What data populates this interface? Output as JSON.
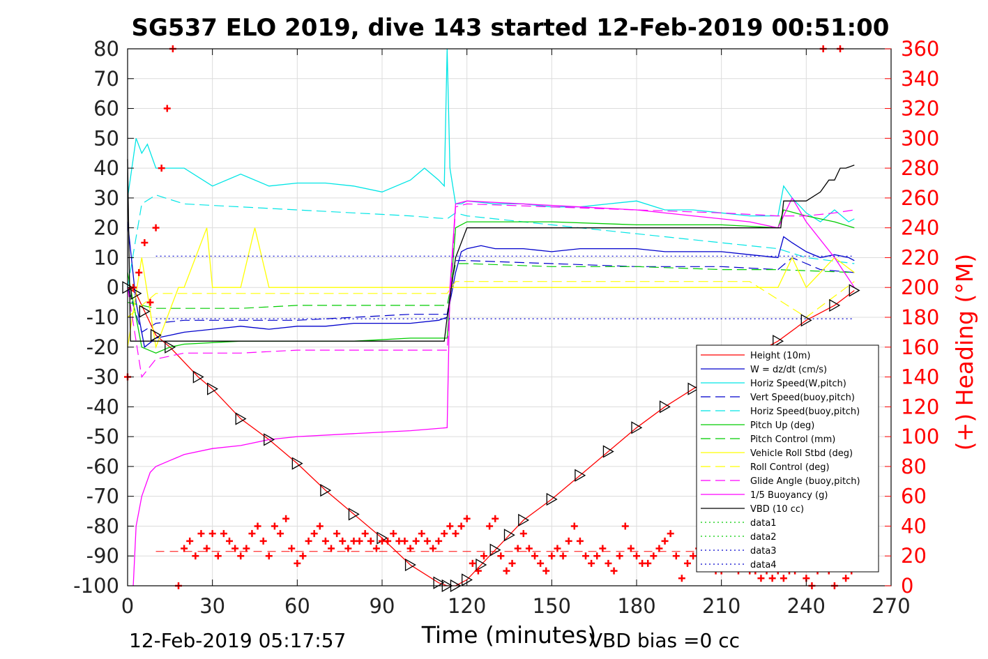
{
  "chart_data": {
    "type": "line",
    "title": "SG537 ELO 2019, dive 143 started 12-Feb-2019 00:51:00",
    "xlabel": "Time (minutes)",
    "ylabel_right": "(+) Heading (°M)",
    "xlim": [
      0,
      270
    ],
    "ylim": [
      -100,
      80
    ],
    "ylim_right": [
      0,
      360
    ],
    "xticks": [
      "0",
      "30",
      "60",
      "90",
      "120",
      "150",
      "180",
      "210",
      "240",
      "270"
    ],
    "yticks": [
      "80",
      "70",
      "60",
      "50",
      "40",
      "30",
      "20",
      "10",
      "0",
      "-10",
      "-20",
      "-30",
      "-40",
      "-50",
      "-60",
      "-70",
      "-80",
      "-90",
      "-100"
    ],
    "yticks_right": [
      "360",
      "340",
      "320",
      "300",
      "280",
      "260",
      "240",
      "220",
      "200",
      "180",
      "160",
      "140",
      "120",
      "100",
      "80",
      "60",
      "40",
      "20",
      "0"
    ],
    "grid": true,
    "legend_position": "lower-right",
    "footer_left": "12-Feb-2019 05:17:57",
    "footer_right": "VBD bias =0 cc",
    "colors": {
      "red": "#ff0000",
      "blue": "#0000cc",
      "cyan": "#00e5e5",
      "green": "#00cc00",
      "yellow": "#ffff00",
      "magenta": "#ff00ff",
      "black": "#000000",
      "right_axis": "#ff0000"
    },
    "series": [
      {
        "name": "Height (10m)",
        "color": "#ff0000",
        "style": "solid",
        "x": [
          0,
          3,
          6,
          10,
          15,
          25,
          30,
          40,
          50,
          60,
          70,
          80,
          90,
          100,
          110,
          113,
          116,
          120,
          125,
          130,
          135,
          140,
          150,
          160,
          170,
          180,
          190,
          200,
          210,
          220,
          230,
          240,
          250,
          257
        ],
        "y": [
          0,
          -2,
          -8,
          -16,
          -20,
          -30,
          -34,
          -44,
          -51,
          -59,
          -68,
          -76,
          -84,
          -93,
          -99,
          -100,
          -100,
          -98,
          -93,
          -88,
          -83,
          -78,
          -71,
          -63,
          -55,
          -47,
          -40,
          -34,
          -28,
          -23,
          -18,
          -11,
          -6,
          -1
        ]
      },
      {
        "name": "W = dz/dt (cm/s)",
        "color": "#0000cc",
        "style": "solid",
        "x": [
          0,
          3,
          6,
          10,
          15,
          20,
          30,
          40,
          50,
          60,
          70,
          80,
          90,
          100,
          110,
          113,
          116,
          118,
          120,
          125,
          130,
          140,
          150,
          160,
          170,
          180,
          190,
          200,
          210,
          220,
          230,
          232,
          235,
          240,
          245,
          250,
          255,
          257
        ],
        "y": [
          22,
          -5,
          -20,
          -17,
          -16,
          -15,
          -14,
          -13,
          -14,
          -13,
          -13,
          -12,
          -12,
          -12,
          -11,
          -10,
          5,
          12,
          13,
          14,
          13,
          13,
          12,
          13,
          13,
          13,
          12,
          12,
          12,
          11,
          10,
          17,
          15,
          12,
          10,
          11,
          10,
          9
        ]
      },
      {
        "name": "Horiz Speed(W,pitch)",
        "color": "#00e5e5",
        "style": "solid",
        "x": [
          0,
          3,
          5,
          7,
          10,
          15,
          20,
          30,
          40,
          50,
          60,
          70,
          80,
          90,
          100,
          105,
          110,
          112,
          113,
          114,
          116,
          118,
          120,
          130,
          140,
          150,
          160,
          170,
          180,
          190,
          200,
          210,
          220,
          230,
          232,
          235,
          240,
          245,
          250,
          255,
          257
        ],
        "y": [
          30,
          50,
          45,
          48,
          40,
          40,
          40,
          34,
          38,
          34,
          35,
          35,
          34,
          32,
          36,
          40,
          36,
          34,
          80,
          40,
          28,
          28,
          29,
          28,
          28,
          27,
          27,
          28,
          29,
          26,
          26,
          25,
          24,
          24,
          34,
          30,
          25,
          22,
          26,
          22,
          23
        ]
      },
      {
        "name": "Vert Speed(buoy,pitch)",
        "color": "#0000cc",
        "style": "dashed",
        "x": [
          0,
          5,
          10,
          20,
          40,
          60,
          80,
          100,
          113,
          116,
          120,
          150,
          180,
          210,
          230,
          235,
          245,
          257
        ],
        "y": [
          0,
          -15,
          -12,
          -11,
          -11,
          -11,
          -10,
          -9,
          -9,
          9,
          9,
          8,
          7,
          7,
          6,
          10,
          6,
          5
        ]
      },
      {
        "name": "Horiz Speed(buoy,pitch)",
        "color": "#00e5e5",
        "style": "dashed",
        "x": [
          0,
          5,
          10,
          20,
          40,
          60,
          80,
          100,
          113,
          116,
          120,
          150,
          180,
          210,
          230,
          240,
          257
        ],
        "y": [
          0,
          28,
          31,
          28,
          27,
          26,
          25,
          24,
          23,
          25,
          24,
          21,
          18,
          15,
          13,
          10,
          8
        ]
      },
      {
        "name": "Pitch Up (deg)",
        "color": "#00cc00",
        "style": "solid",
        "x": [
          0,
          5,
          10,
          15,
          20,
          40,
          60,
          80,
          100,
          113,
          116,
          120,
          150,
          180,
          210,
          230,
          232,
          240,
          250,
          257
        ],
        "y": [
          5,
          -20,
          -22,
          -20,
          -19,
          -18,
          -18,
          -18,
          -17,
          -17,
          20,
          22,
          22,
          21,
          21,
          20,
          26,
          24,
          22,
          20
        ]
      },
      {
        "name": "Pitch Control (mm)",
        "color": "#00cc00",
        "style": "dashed",
        "x": [
          0,
          10,
          20,
          40,
          60,
          80,
          100,
          113,
          116,
          120,
          150,
          180,
          210,
          230,
          257
        ],
        "y": [
          -5,
          -7,
          -7,
          -7,
          -6,
          -6,
          -6,
          -6,
          8,
          8,
          7,
          7,
          6,
          6,
          5
        ]
      },
      {
        "name": "Vehicle Roll Stbd (deg)",
        "color": "#ffff00",
        "style": "solid",
        "x": [
          0,
          5,
          10,
          18,
          20,
          28,
          30,
          40,
          45,
          50,
          60,
          70,
          80,
          90,
          100,
          110,
          113,
          116,
          120,
          130,
          140,
          150,
          160,
          170,
          180,
          190,
          200,
          210,
          220,
          230,
          235,
          240,
          250,
          257
        ],
        "y": [
          -20,
          10,
          -20,
          0,
          0,
          20,
          0,
          0,
          20,
          0,
          0,
          0,
          0,
          0,
          0,
          0,
          0,
          0,
          0,
          0,
          0,
          0,
          0,
          0,
          0,
          0,
          0,
          0,
          0,
          0,
          10,
          0,
          10,
          5
        ]
      },
      {
        "name": "Roll Control (deg)",
        "color": "#ffff00",
        "style": "dashed",
        "x": [
          0,
          10,
          20,
          40,
          60,
          80,
          100,
          113,
          116,
          120,
          140,
          160,
          180,
          200,
          220,
          240,
          257
        ],
        "y": [
          -10,
          -2,
          -2,
          -2,
          -2,
          -2,
          -2,
          -2,
          2,
          2,
          2,
          2,
          2,
          2,
          2,
          -10,
          2
        ]
      },
      {
        "name": "Glide Angle (buoy,pitch)",
        "color": "#ff00ff",
        "style": "dashed",
        "x": [
          0,
          5,
          10,
          20,
          40,
          60,
          80,
          100,
          113,
          116,
          120,
          150,
          180,
          210,
          230,
          240,
          250,
          257
        ],
        "y": [
          0,
          -30,
          -24,
          -22,
          -22,
          -21,
          -21,
          -21,
          -21,
          27,
          28,
          27,
          26,
          25,
          24,
          24,
          25,
          26
        ]
      },
      {
        "name": "1/5 Buoyancy (g)",
        "color": "#ff00ff",
        "style": "solid",
        "x": [
          2,
          3,
          5,
          8,
          10,
          15,
          20,
          30,
          40,
          50,
          60,
          80,
          100,
          113,
          114,
          116,
          120,
          140,
          160,
          180,
          200,
          220,
          230,
          235,
          240,
          250,
          257
        ],
        "y": [
          -100,
          -80,
          -70,
          -62,
          -60,
          -58,
          -56,
          -54,
          -53,
          -51,
          -50,
          -49,
          -48,
          -47,
          0,
          28,
          29,
          28,
          27,
          26,
          24,
          22,
          20,
          30,
          22,
          10,
          0
        ]
      },
      {
        "name": "VBD (10 cc)",
        "color": "#000000",
        "style": "solid",
        "x": [
          0,
          1,
          2,
          10,
          30,
          60,
          90,
          112,
          113,
          116,
          120,
          150,
          180,
          210,
          230,
          231,
          232,
          240,
          245,
          248,
          250,
          252,
          254,
          257
        ],
        "y": [
          43,
          -18,
          -18,
          -18,
          -18,
          -18,
          -18,
          -18,
          -10,
          10,
          20,
          20,
          20,
          20,
          20,
          20,
          29,
          29,
          32,
          36,
          36,
          40,
          40,
          41
        ]
      },
      {
        "name": "data1",
        "color": "#00cc00",
        "style": "dotted",
        "x": [],
        "y": []
      },
      {
        "name": "data2",
        "color": "#00cc00",
        "style": "dotted",
        "x": [],
        "y": []
      },
      {
        "name": "data3",
        "color": "#0000cc",
        "style": "dotted",
        "x": [
          10,
          257
        ],
        "y": [
          10.5,
          10.5
        ]
      },
      {
        "name": "data4",
        "color": "#0000cc",
        "style": "dotted",
        "x": [
          10,
          257
        ],
        "y": [
          -10.5,
          -10.5
        ]
      }
    ],
    "heading_axis": "right",
    "heading_points": {
      "color": "#ff0000",
      "x": [
        0,
        2,
        4,
        6,
        8,
        10,
        12,
        14,
        16,
        18,
        20,
        22,
        24,
        26,
        28,
        30,
        32,
        34,
        36,
        38,
        40,
        42,
        44,
        46,
        48,
        50,
        52,
        54,
        56,
        58,
        60,
        62,
        64,
        66,
        68,
        70,
        72,
        74,
        76,
        78,
        80,
        82,
        84,
        86,
        88,
        90,
        92,
        94,
        96,
        98,
        100,
        102,
        104,
        106,
        108,
        110,
        112,
        114,
        116,
        118,
        120,
        122,
        124,
        126,
        128,
        130,
        132,
        134,
        136,
        138,
        140,
        142,
        144,
        146,
        148,
        150,
        152,
        154,
        156,
        158,
        160,
        162,
        164,
        166,
        168,
        170,
        172,
        174,
        176,
        178,
        180,
        182,
        184,
        186,
        188,
        190,
        192,
        194,
        196,
        198,
        200,
        202,
        204,
        206,
        208,
        210,
        212,
        214,
        216,
        218,
        220,
        222,
        224,
        226,
        228,
        230,
        232,
        234,
        236,
        238,
        240,
        242,
        244,
        246,
        248,
        250,
        252,
        254,
        256
      ],
      "y": [
        140,
        200,
        210,
        230,
        190,
        240,
        280,
        320,
        360,
        0,
        25,
        30,
        20,
        35,
        25,
        35,
        20,
        35,
        30,
        25,
        20,
        25,
        35,
        40,
        30,
        20,
        40,
        35,
        45,
        25,
        15,
        20,
        30,
        35,
        40,
        30,
        25,
        35,
        30,
        25,
        30,
        30,
        35,
        30,
        25,
        30,
        30,
        35,
        30,
        30,
        25,
        30,
        35,
        30,
        25,
        30,
        35,
        40,
        35,
        40,
        45,
        15,
        10,
        20,
        40,
        45,
        20,
        10,
        15,
        25,
        35,
        25,
        20,
        15,
        10,
        20,
        25,
        20,
        30,
        40,
        30,
        20,
        15,
        20,
        25,
        15,
        10,
        20,
        40,
        25,
        20,
        15,
        15,
        20,
        25,
        30,
        35,
        20,
        5,
        15,
        20,
        25,
        15,
        15,
        10,
        10,
        20,
        15,
        10,
        15,
        10,
        10,
        5,
        10,
        5,
        10,
        5,
        10,
        10,
        15,
        5,
        0,
        10,
        360,
        10,
        0,
        360,
        5,
        10
      ]
    },
    "reference_line": {
      "color": "#ff0000",
      "style": "dashed",
      "y": -88.5,
      "x": [
        10,
        257
      ]
    }
  }
}
